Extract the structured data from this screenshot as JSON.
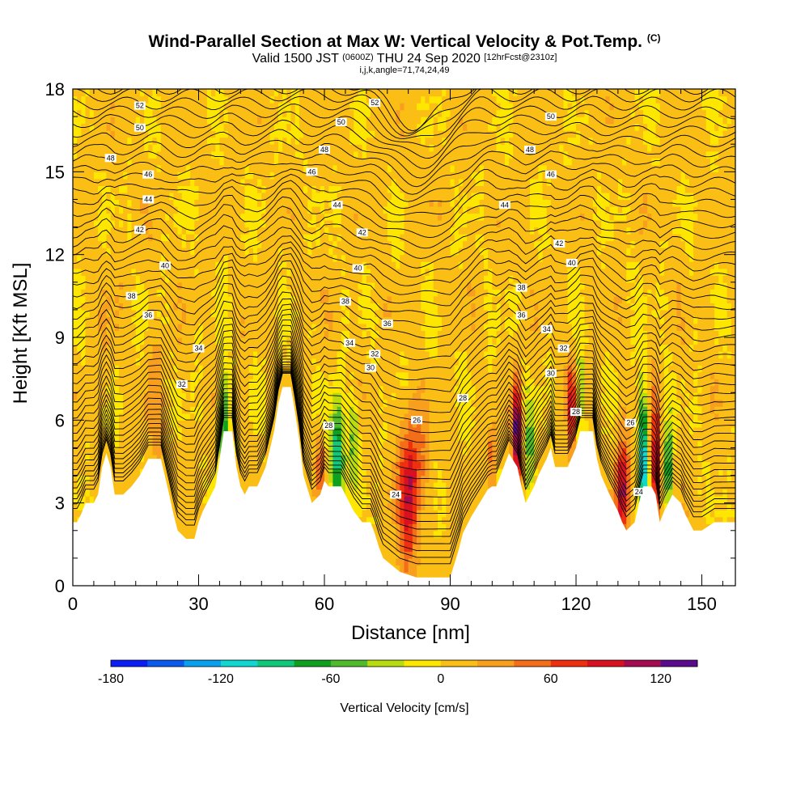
{
  "header": {
    "title": "Wind-Parallel Section at Max W: Vertical Velocity & Pot.Temp.",
    "title_mark": "(C)",
    "valid_prefix": "Valid 1500 JST",
    "valid_utc": "(0600Z)",
    "valid_date": "THU 24 Sep 2020",
    "forecast": "[12hrFcst@2310z]",
    "indices": "i,j,k,angle=71,74,24,49"
  },
  "chart_data": {
    "type": "heatmap",
    "xlabel": "Distance [nm]",
    "ylabel": "Height [Kft MSL]",
    "xlim": [
      0,
      158
    ],
    "ylim": [
      0,
      18
    ],
    "xticks": [
      0,
      30,
      60,
      90,
      120,
      150
    ],
    "yticks": [
      0,
      3,
      6,
      9,
      12,
      15,
      18
    ],
    "field": "Vertical Velocity",
    "colorbar": {
      "label": "Vertical Velocity [cm/s]",
      "ticks": [
        -180,
        -120,
        -60,
        0,
        60,
        120
      ],
      "levels": [
        -180,
        -160,
        -140,
        -120,
        -100,
        -80,
        -60,
        -40,
        -20,
        0,
        20,
        40,
        60,
        80,
        100,
        120,
        140
      ],
      "colors": [
        "#0a1ef5",
        "#0a5af0",
        "#0aa0f0",
        "#10d8d0",
        "#10c87a",
        "#10a020",
        "#50bb2a",
        "#b8dc10",
        "#fde600",
        "#fbbe14",
        "#f8a01e",
        "#f46e1a",
        "#ee3010",
        "#d81020",
        "#a50c50",
        "#5a0a8c"
      ]
    },
    "terrain": [
      [
        0,
        2.3
      ],
      [
        1,
        2.3
      ],
      [
        2,
        2.6
      ],
      [
        3,
        3.0
      ],
      [
        5,
        3.0
      ],
      [
        6,
        3.3
      ],
      [
        7,
        4.3
      ],
      [
        8,
        4.8
      ],
      [
        9,
        4.3
      ],
      [
        10,
        3.3
      ],
      [
        12,
        3.3
      ],
      [
        14,
        3.6
      ],
      [
        16,
        4.0
      ],
      [
        18,
        4.6
      ],
      [
        21,
        4.6
      ],
      [
        23,
        3.3
      ],
      [
        24,
        2.6
      ],
      [
        25,
        2.0
      ],
      [
        27,
        1.7
      ],
      [
        29,
        1.7
      ],
      [
        30,
        2.3
      ],
      [
        31,
        2.7
      ],
      [
        32,
        3.0
      ],
      [
        34,
        3.6
      ],
      [
        36,
        5.6
      ],
      [
        38,
        5.6
      ],
      [
        39,
        4.3
      ],
      [
        40,
        3.6
      ],
      [
        41,
        3.3
      ],
      [
        42,
        3.6
      ],
      [
        44,
        3.6
      ],
      [
        46,
        4.3
      ],
      [
        48,
        5.6
      ],
      [
        49,
        6.6
      ],
      [
        50,
        7.2
      ],
      [
        52,
        7.2
      ],
      [
        53,
        6.3
      ],
      [
        54,
        5.3
      ],
      [
        55,
        4.0
      ],
      [
        57,
        3.0
      ],
      [
        59,
        3.3
      ],
      [
        60,
        3.8
      ],
      [
        61,
        3.6
      ],
      [
        64,
        3.6
      ],
      [
        65,
        3.3
      ],
      [
        67,
        2.7
      ],
      [
        69,
        2.3
      ],
      [
        71,
        2.3
      ],
      [
        72,
        1.9
      ],
      [
        73,
        1.4
      ],
      [
        74,
        1.0
      ],
      [
        78,
        0.5
      ],
      [
        82,
        0.3
      ],
      [
        90,
        0.3
      ],
      [
        91,
        0.8
      ],
      [
        92,
        1.3
      ],
      [
        93,
        1.9
      ],
      [
        95,
        2.5
      ],
      [
        97,
        3.0
      ],
      [
        99,
        3.5
      ],
      [
        100,
        3.6
      ],
      [
        101,
        3.6
      ],
      [
        102,
        4.0
      ],
      [
        103,
        4.4
      ],
      [
        104,
        4.8
      ],
      [
        106,
        4.3
      ],
      [
        107,
        3.6
      ],
      [
        108,
        3.0
      ],
      [
        110,
        3.6
      ],
      [
        111,
        4.0
      ],
      [
        113,
        4.6
      ],
      [
        114,
        5.0
      ],
      [
        115,
        4.3
      ],
      [
        118,
        4.3
      ],
      [
        120,
        5.0
      ],
      [
        121,
        5.6
      ],
      [
        124,
        5.6
      ],
      [
        125,
        4.6
      ],
      [
        126,
        4.0
      ],
      [
        128,
        3.3
      ],
      [
        130,
        2.7
      ],
      [
        131,
        2.3
      ],
      [
        132,
        2.0
      ],
      [
        134,
        2.3
      ],
      [
        135,
        3.0
      ],
      [
        136,
        3.6
      ],
      [
        138,
        3.6
      ],
      [
        139,
        3.3
      ],
      [
        140,
        2.3
      ],
      [
        141,
        2.7
      ],
      [
        142,
        3.0
      ],
      [
        143,
        3.3
      ],
      [
        145,
        3.0
      ],
      [
        146,
        2.6
      ],
      [
        148,
        2.0
      ],
      [
        150,
        2.0
      ],
      [
        153,
        2.3
      ],
      [
        158,
        2.3
      ]
    ],
    "w_features": [
      {
        "x": 8,
        "z": 9.0,
        "rx": 1.6,
        "rz": 2.0,
        "w": 15
      },
      {
        "x": 20,
        "z": 6.5,
        "rx": 2.0,
        "rz": 2.5,
        "w": 22
      },
      {
        "x": 36,
        "z": 5.6,
        "rx": 1.3,
        "rz": 2.0,
        "w": -85
      },
      {
        "x": 63,
        "z": 4.6,
        "rx": 1.6,
        "rz": 2.0,
        "w": -110
      },
      {
        "x": 67,
        "z": 5.3,
        "rx": 1.3,
        "rz": 1.6,
        "w": -50
      },
      {
        "x": 59,
        "z": 4.3,
        "rx": 1.2,
        "rz": 1.2,
        "w": 55
      },
      {
        "x": 80,
        "z": 3.0,
        "rx": 2.4,
        "rz": 2.6,
        "w": 80
      },
      {
        "x": 82,
        "z": 4.6,
        "rx": 3.2,
        "rz": 1.8,
        "w": 35
      },
      {
        "x": 106,
        "z": 5.5,
        "rx": 1.0,
        "rz": 2.0,
        "w": 140
      },
      {
        "x": 109,
        "z": 5.0,
        "rx": 1.2,
        "rz": 2.0,
        "w": -55
      },
      {
        "x": 119,
        "z": 6.6,
        "rx": 1.0,
        "rz": 1.5,
        "w": 90
      },
      {
        "x": 121,
        "z": 6.9,
        "rx": 1.1,
        "rz": 1.6,
        "w": -45
      },
      {
        "x": 131,
        "z": 3.6,
        "rx": 1.6,
        "rz": 1.8,
        "w": 100
      },
      {
        "x": 136,
        "z": 4.6,
        "rx": 1.0,
        "rz": 2.4,
        "w": -140
      },
      {
        "x": 139,
        "z": 4.3,
        "rx": 1.0,
        "rz": 2.3,
        "w": 110
      },
      {
        "x": 142,
        "z": 4.3,
        "rx": 0.9,
        "rz": 1.6,
        "w": -90
      },
      {
        "x": 100,
        "z": 4.6,
        "rx": 0.8,
        "rz": 1.2,
        "w": 55
      }
    ],
    "theta_contours": [
      {
        "level": 24,
        "labels": [
          {
            "x": 77,
            "z": 3.3
          },
          {
            "x": 135,
            "z": 3.4
          }
        ]
      },
      {
        "level": 26,
        "labels": [
          {
            "x": 82,
            "z": 6.0
          },
          {
            "x": 133,
            "z": 5.9
          }
        ]
      },
      {
        "level": 28,
        "labels": [
          {
            "x": 61,
            "z": 5.8
          },
          {
            "x": 93,
            "z": 6.8
          },
          {
            "x": 120,
            "z": 6.3
          }
        ]
      },
      {
        "level": 30,
        "labels": [
          {
            "x": 71,
            "z": 7.9
          },
          {
            "x": 114,
            "z": 7.7
          }
        ]
      },
      {
        "level": 32,
        "labels": [
          {
            "x": 26,
            "z": 7.3
          },
          {
            "x": 72,
            "z": 8.4
          },
          {
            "x": 117,
            "z": 8.6
          }
        ]
      },
      {
        "level": 34,
        "labels": [
          {
            "x": 30,
            "z": 8.6
          },
          {
            "x": 66,
            "z": 8.8
          },
          {
            "x": 113,
            "z": 9.3
          }
        ]
      },
      {
        "level": 36,
        "labels": [
          {
            "x": 18,
            "z": 9.8
          },
          {
            "x": 75,
            "z": 9.5
          },
          {
            "x": 107,
            "z": 9.8
          }
        ]
      },
      {
        "level": 38,
        "labels": [
          {
            "x": 14,
            "z": 10.5
          },
          {
            "x": 65,
            "z": 10.3
          },
          {
            "x": 107,
            "z": 10.8
          }
        ]
      },
      {
        "level": 40,
        "labels": [
          {
            "x": 22,
            "z": 11.6
          },
          {
            "x": 68,
            "z": 11.5
          },
          {
            "x": 119,
            "z": 11.7
          }
        ]
      },
      {
        "level": 42,
        "labels": [
          {
            "x": 16,
            "z": 12.9
          },
          {
            "x": 69,
            "z": 12.8
          },
          {
            "x": 116,
            "z": 12.4
          }
        ]
      },
      {
        "level": 44,
        "labels": [
          {
            "x": 18,
            "z": 14.0
          },
          {
            "x": 63,
            "z": 13.8
          },
          {
            "x": 103,
            "z": 13.8
          }
        ]
      },
      {
        "level": 46,
        "labels": [
          {
            "x": 18,
            "z": 14.9
          },
          {
            "x": 57,
            "z": 15.0
          },
          {
            "x": 114,
            "z": 14.9
          }
        ]
      },
      {
        "level": 48,
        "labels": [
          {
            "x": 9,
            "z": 15.5
          },
          {
            "x": 60,
            "z": 15.8
          },
          {
            "x": 109,
            "z": 15.8
          }
        ]
      },
      {
        "level": 50,
        "labels": [
          {
            "x": 16,
            "z": 16.6
          },
          {
            "x": 64,
            "z": 16.8
          },
          {
            "x": 114,
            "z": 17.0
          }
        ]
      },
      {
        "level": 52,
        "labels": [
          {
            "x": 16,
            "z": 17.4
          },
          {
            "x": 72,
            "z": 17.5
          }
        ]
      }
    ],
    "theta_lines_total": 50
  }
}
